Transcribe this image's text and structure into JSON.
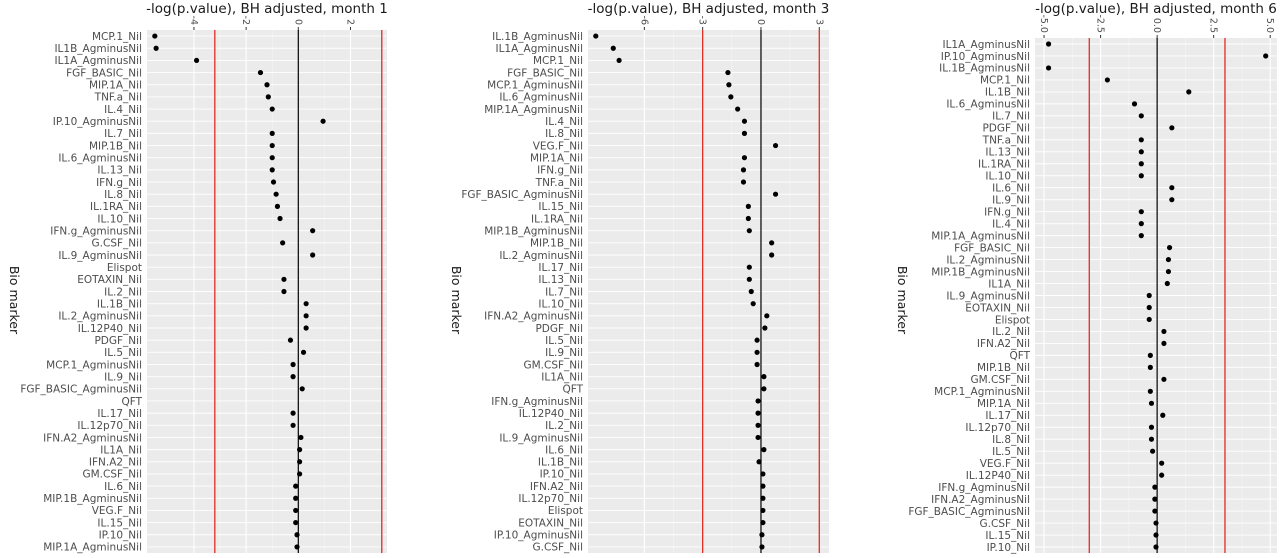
{
  "chart_data": [
    {
      "type": "scatter",
      "title": "-log(p.value), BH adjusted, month 1",
      "ylabel": "Bio marker",
      "xlim": [
        -5.8,
        3.4
      ],
      "xticks": [
        -4,
        -2,
        0,
        2
      ],
      "tick_labels": [
        "-4",
        "-2",
        "0",
        "2"
      ],
      "reference_lines": [
        -3.2,
        3.2
      ],
      "categories": [
        "MCP.1_Nil",
        "IL1B_AgminusNil",
        "IL1A_AgminusNil",
        "FGF_BASIC_Nil",
        "MIP.1A_Nil",
        "TNF.a_Nil",
        "IL.4_Nil",
        "IP.10_AgminusNil",
        "IL.7_Nil",
        "MIP.1B_Nil",
        "IL.6_AgminusNil",
        "IL.13_Nil",
        "IFN.g_Nil",
        "IL.8_Nil",
        "IL.1RA_Nil",
        "IL.10_Nil",
        "IFN.g_AgminusNil",
        "G.CSF_Nil",
        "IL.9_AgminusNil",
        "Elispot",
        "EOTAXIN_Nil",
        "IL.2_Nil",
        "IL.1B_Nil",
        "IL.2_AgminusNil",
        "IL.12P40_Nil",
        "PDGF_Nil",
        "IL.5_Nil",
        "MCP.1_AgminusNil",
        "IL.9_Nil",
        "FGF_BASIC_AgminusNil",
        "QFT",
        "IL.17_Nil",
        "IL.12p70_Nil",
        "IFN.A2_AgminusNil",
        "IL1A_Nil",
        "IFN.A2_Nil",
        "GM.CSF_Nil",
        "IL.6_Nil",
        "MIP.1B_AgminusNil",
        "VEG.F_Nil",
        "IL.15_Nil",
        "IP.10_Nil",
        "MIP.1A_AgminusNil"
      ],
      "values": [
        -5.5,
        -5.45,
        -3.9,
        -1.45,
        -1.2,
        -1.15,
        -1.0,
        0.95,
        -1.0,
        -1.0,
        -1.0,
        -1.0,
        -0.95,
        -0.85,
        -0.8,
        -0.7,
        0.55,
        -0.6,
        0.55,
        null,
        -0.55,
        -0.55,
        0.3,
        0.3,
        0.3,
        -0.3,
        0.2,
        -0.2,
        -0.2,
        0.15,
        null,
        -0.2,
        -0.2,
        0.1,
        0.05,
        0.05,
        0.05,
        -0.1,
        -0.1,
        -0.1,
        -0.1,
        -0.05,
        -0.05
      ]
    },
    {
      "type": "scatter",
      "title": "-log(p.value), BH adjusted, month 3",
      "xlim": [
        -8.9,
        3.5
      ],
      "xticks": [
        -6,
        -3,
        0,
        3
      ],
      "tick_labels": [
        "-6",
        "-3",
        "0",
        "3"
      ],
      "reference_lines": [
        -3.0,
        3.0
      ],
      "categories": [
        "IL.1B_AgminusNil",
        "IL1A_AgminusNil",
        "MCP.1_Nil",
        "FGF_BASIC_Nil",
        "MCP.1_AgminusNil",
        "IL.6_AgminusNil",
        "MIP.1A_AgminusNil",
        "IL.4_Nil",
        "IL.8_Nil",
        "VEG.F_Nil",
        "MIP.1A_Nil",
        "IFN.g_Nil",
        "TNF.a_Nil",
        "FGF_BASIC_AgminusNil",
        "IL.15_Nil",
        "IL.1RA_Nil",
        "MIP.1B_AgminusNil",
        "MIP.1B_Nil",
        "IL.2_AgminusNil",
        "IL.17_Nil",
        "IL.13_Nil",
        "IL.7_Nil",
        "IL.10_Nil",
        "IFN.A2_AgminusNil",
        "PDGF_Nil",
        "IL.5_Nil",
        "IL.9_Nil",
        "GM.CSF_Nil",
        "IL1A_Nil",
        "QFT",
        "IFN.g_AgminusNil",
        "IL.12P40_Nil",
        "IL.2_Nil",
        "IL.9_AgminusNil",
        "IL.6_Nil",
        "IL.1B_Nil",
        "IP.10_Nil",
        "IFN.A2_Nil",
        "IL.12p70_Nil",
        "Elispot",
        "EOTAXIN_Nil",
        "IP.10_AgminusNil",
        "G.CSF_Nil"
      ],
      "values": [
        -8.5,
        -7.6,
        -7.3,
        -1.7,
        -1.65,
        -1.55,
        -1.2,
        -0.85,
        -0.85,
        0.75,
        -0.85,
        -0.9,
        -0.9,
        0.75,
        -0.65,
        -0.65,
        -0.6,
        0.55,
        0.55,
        -0.6,
        -0.6,
        -0.5,
        -0.4,
        0.3,
        0.2,
        -0.2,
        -0.2,
        -0.2,
        0.15,
        0.15,
        -0.15,
        -0.15,
        -0.15,
        -0.15,
        0.15,
        -0.1,
        0.1,
        0.1,
        0.1,
        0.1,
        0.1,
        0.05,
        0.05
      ]
    },
    {
      "type": "scatter",
      "title": "-log(p.value), BH adjusted, month 6",
      "xlim": [
        -5.4,
        5.3
      ],
      "xticks": [
        -5.0,
        -2.5,
        0.0,
        2.5,
        5.0
      ],
      "tick_labels": [
        "-5.0",
        "-2.5",
        "0.0",
        "2.5",
        "5.0"
      ],
      "reference_lines": [
        -3.0,
        3.0
      ],
      "categories": [
        "IL1A_AgminusNil",
        "IP.10_AgminusNil",
        "IL.1B_AgminusNil",
        "MCP.1_Nil",
        "IL.1B_Nil",
        "IL.6_AgminusNil",
        "IL.7_Nil",
        "PDGF_Nil",
        "TNF.a_Nil",
        "IL.13_Nil",
        "IL.1RA_Nil",
        "IL.10_Nil",
        "IL.6_Nil",
        "IL.9_Nil",
        "IFN.g_Nil",
        "IL.4_Nil",
        "MIP.1A_AgminusNil",
        "FGF_BASIC_Nil",
        "IL.2_AgminusNil",
        "MIP.1B_AgminusNil",
        "IL1A_Nil",
        "IL.9_AgminusNil",
        "EOTAXIN_Nil",
        "Elispot",
        "IL.2_Nil",
        "IFN.A2_Nil",
        "QFT",
        "MIP.1B_Nil",
        "GM.CSF_Nil",
        "MCP.1_AgminusNil",
        "MIP.1A_Nil",
        "IL.17_Nil",
        "IL.12p70_Nil",
        "IL.8_Nil",
        "IL.5_Nil",
        "VEG.F_Nil",
        "IL.12P40_Nil",
        "IFN.g_AgminusNil",
        "IFN.A2_AgminusNil",
        "FGF_BASIC_AgminusNil",
        "G.CSF_Nil",
        "IL.15_Nil",
        "IP.10_Nil"
      ],
      "values": [
        -4.8,
        4.8,
        -4.8,
        -2.2,
        1.4,
        -1.0,
        -0.7,
        0.65,
        -0.7,
        -0.7,
        -0.7,
        -0.7,
        0.65,
        0.65,
        -0.7,
        -0.7,
        -0.7,
        0.55,
        0.5,
        0.5,
        0.45,
        -0.35,
        -0.35,
        -0.35,
        0.3,
        0.3,
        -0.3,
        -0.3,
        0.3,
        -0.3,
        -0.25,
        0.25,
        -0.25,
        -0.25,
        -0.2,
        0.2,
        0.2,
        -0.1,
        -0.1,
        -0.1,
        -0.05,
        -0.05,
        -0.05
      ]
    }
  ]
}
